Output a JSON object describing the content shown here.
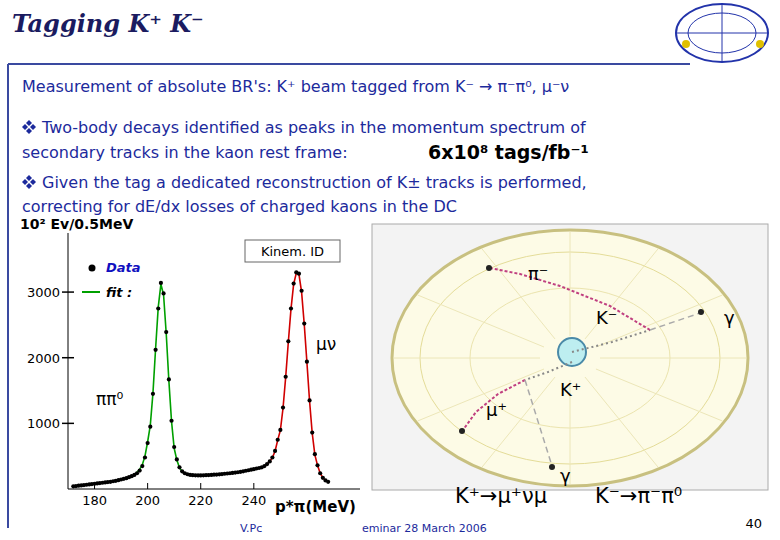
{
  "slide": {
    "title": "Tagging K⁺ K⁻",
    "intro": "Measurement of absolute BR's: K⁺ beam tagged from K⁻ → π⁻π⁰, μ⁻ν",
    "bullets": [
      {
        "lines": [
          "Two-body decays identified as peaks in the momentum spectrum of",
          "secondary tracks in the kaon rest frame:"
        ],
        "highlight": "6x10⁸ tags/fb⁻¹"
      },
      {
        "lines": [
          "Given the tag a dedicated reconstruction of K± tracks is performed,",
          "correcting for dE/dx losses of charged kaons in the DC"
        ]
      }
    ],
    "footer": [
      "V.Pc",
      "eminar 28 March 2006"
    ],
    "page": 40
  },
  "diagram": {
    "labels": [
      "π⁻",
      "K⁻",
      "γ",
      "K⁺",
      "μ⁺",
      "γ"
    ],
    "captions": [
      "K⁺→μ⁺νμ",
      "K⁻→π⁻π⁰"
    ]
  },
  "chart_data": {
    "type": "scatter",
    "y_label": "10² Ev/0.5MeV",
    "x_label": "p*π(MeV)",
    "annotations": [
      "Kinem. ID",
      "ππ⁰",
      "μν"
    ],
    "x": [
      172,
      173,
      174,
      175,
      176,
      177,
      178,
      179,
      180,
      181,
      182,
      183,
      184,
      185,
      186,
      187,
      188,
      189,
      190,
      191,
      192,
      193,
      194,
      195,
      196,
      197,
      198,
      199,
      200,
      201,
      202,
      203,
      204,
      205,
      206,
      207,
      208,
      209,
      210,
      211,
      212,
      213,
      214,
      215,
      216,
      217,
      218,
      219,
      220,
      221,
      222,
      223,
      224,
      225,
      226,
      227,
      228,
      229,
      230,
      231,
      232,
      233,
      234,
      235,
      236,
      237,
      238,
      239,
      240,
      241,
      242,
      243,
      244,
      245,
      246,
      247,
      248,
      249,
      250,
      251,
      252,
      253,
      254,
      255,
      256,
      257,
      258,
      259,
      260,
      261,
      262,
      263,
      264,
      265,
      266,
      267,
      268
    ],
    "series": [
      {
        "name": "Data",
        "type": "scatter",
        "marker": "circle",
        "color": "#000000",
        "values": [
          40,
          45,
          50,
          55,
          60,
          65,
          70,
          75,
          80,
          85,
          90,
          95,
          100,
          105,
          110,
          118,
          125,
          135,
          145,
          155,
          165,
          180,
          195,
          215,
          240,
          280,
          350,
          480,
          700,
          950,
          1450,
          2120,
          2750,
          3140,
          2980,
          2390,
          1670,
          1040,
          640,
          450,
          330,
          270,
          240,
          225,
          215,
          210,
          208,
          207,
          207,
          208,
          210,
          212,
          215,
          218,
          220,
          224,
          228,
          232,
          236,
          240,
          245,
          250,
          255,
          262,
          270,
          278,
          286,
          294,
          302,
          312,
          320,
          330,
          350,
          380,
          420,
          480,
          580,
          750,
          900,
          1240,
          1710,
          2250,
          2750,
          3130,
          3300,
          3280,
          3020,
          2520,
          1940,
          1350,
          860,
          530,
          360,
          240,
          170,
          130,
          110
        ]
      },
      {
        "name": "fit :",
        "type": "line",
        "line_style": "solid",
        "color": "#00a000",
        "values": [
          null,
          null,
          null,
          null,
          null,
          null,
          null,
          null,
          null,
          null,
          null,
          null,
          null,
          null,
          null,
          null,
          null,
          null,
          null,
          null,
          null,
          175,
          195,
          220,
          255,
          300,
          370,
          500,
          720,
          970,
          1460,
          2140,
          2770,
          3120,
          2960,
          2370,
          1650,
          1030,
          620,
          440,
          325,
          265,
          235,
          222,
          212,
          null,
          null,
          null,
          null,
          null,
          null,
          null,
          null,
          null,
          null,
          null,
          null,
          null,
          null,
          null,
          null,
          null,
          null,
          null,
          null,
          null,
          null,
          null,
          null,
          null,
          null,
          null,
          null,
          null,
          null,
          null,
          null,
          null,
          null,
          null,
          null,
          null,
          null,
          null,
          null,
          null,
          null,
          null,
          null,
          null,
          null,
          null,
          null,
          null,
          null,
          null,
          null
        ]
      },
      {
        "type": "line",
        "line_style": "solid",
        "color": "#d00000",
        "values": [
          null,
          null,
          null,
          null,
          null,
          null,
          null,
          null,
          null,
          null,
          null,
          null,
          null,
          null,
          null,
          null,
          null,
          null,
          null,
          null,
          null,
          null,
          null,
          null,
          null,
          null,
          null,
          null,
          null,
          null,
          null,
          null,
          null,
          null,
          null,
          null,
          null,
          null,
          null,
          null,
          null,
          null,
          null,
          null,
          null,
          null,
          null,
          null,
          null,
          null,
          null,
          null,
          null,
          null,
          null,
          null,
          null,
          null,
          null,
          null,
          null,
          null,
          null,
          null,
          null,
          null,
          null,
          null,
          300,
          310,
          318,
          328,
          348,
          378,
          418,
          478,
          575,
          745,
          895,
          1230,
          1700,
          2240,
          2740,
          3120,
          3290,
          3270,
          3000,
          2510,
          1930,
          1340,
          850,
          520,
          360,
          240,
          172,
          132,
          110
        ]
      }
    ],
    "xlim": [
      170,
      280
    ],
    "ylim": [
      0,
      3900
    ],
    "xticks": [
      180,
      200,
      220,
      240
    ],
    "yticks": [
      1000,
      2000,
      3000
    ],
    "grid": false,
    "legend": "top-left"
  }
}
